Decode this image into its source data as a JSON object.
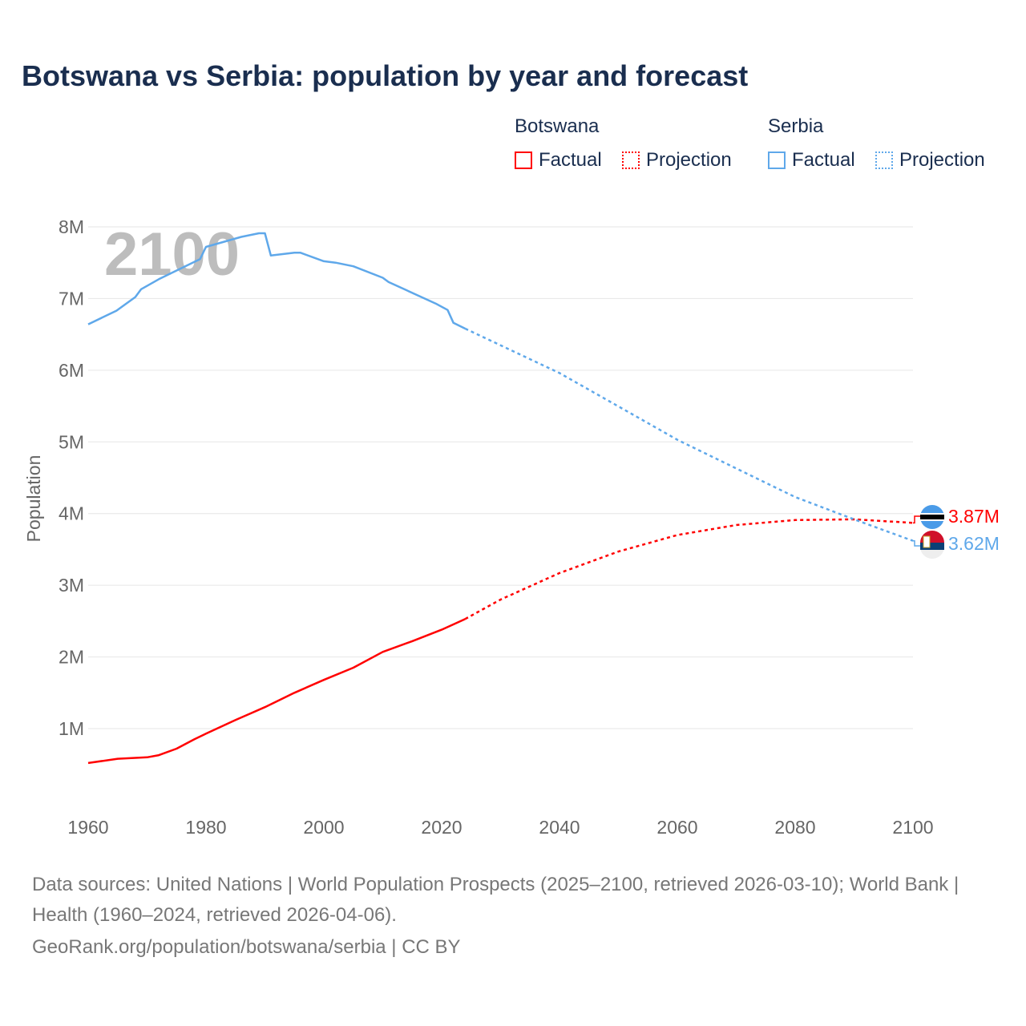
{
  "title": "Botswana vs Serbia: population by year and forecast",
  "legend": {
    "groups": [
      {
        "name": "Botswana",
        "factual": "Factual",
        "projection": "Projection",
        "color": "#ff0000"
      },
      {
        "name": "Serbia",
        "factual": "Factual",
        "projection": "Projection",
        "color": "#5fa8ea"
      }
    ]
  },
  "chart_data": {
    "type": "line",
    "title": "Botswana vs Serbia: population by year and forecast",
    "ylabel": "Population",
    "xlabel": "",
    "year_watermark": "2100",
    "xlim": [
      1960,
      2100
    ],
    "ylim": [
      0,
      8.2
    ],
    "x_ticks": [
      "1960",
      "1980",
      "2000",
      "2020",
      "2040",
      "2060",
      "2080",
      "2100"
    ],
    "y_ticks": [
      {
        "v": 1,
        "label": "1M"
      },
      {
        "v": 2,
        "label": "2M"
      },
      {
        "v": 3,
        "label": "3M"
      },
      {
        "v": 4,
        "label": "4M"
      },
      {
        "v": 5,
        "label": "5M"
      },
      {
        "v": 6,
        "label": "6M"
      },
      {
        "v": 7,
        "label": "7M"
      },
      {
        "v": 8,
        "label": "8M"
      }
    ],
    "units": "millions",
    "series": [
      {
        "name": "Botswana",
        "color": "#ff0000",
        "end_label": "3.87M",
        "factual": [
          [
            1960,
            0.52
          ],
          [
            1965,
            0.58
          ],
          [
            1970,
            0.6
          ],
          [
            1972,
            0.63
          ],
          [
            1975,
            0.72
          ],
          [
            1978,
            0.85
          ],
          [
            1980,
            0.93
          ],
          [
            1985,
            1.12
          ],
          [
            1990,
            1.3
          ],
          [
            1995,
            1.5
          ],
          [
            2000,
            1.68
          ],
          [
            2005,
            1.85
          ],
          [
            2010,
            2.07
          ],
          [
            2015,
            2.22
          ],
          [
            2020,
            2.38
          ],
          [
            2024,
            2.53
          ]
        ],
        "projection": [
          [
            2024,
            2.53
          ],
          [
            2030,
            2.8
          ],
          [
            2040,
            3.17
          ],
          [
            2050,
            3.47
          ],
          [
            2060,
            3.7
          ],
          [
            2070,
            3.84
          ],
          [
            2080,
            3.91
          ],
          [
            2090,
            3.92
          ],
          [
            2100,
            3.87
          ]
        ]
      },
      {
        "name": "Serbia",
        "color": "#5fa8ea",
        "end_label": "3.62M",
        "factual": [
          [
            1960,
            6.64
          ],
          [
            1964.8,
            6.83
          ],
          [
            1968,
            7.02
          ],
          [
            1969,
            7.13
          ],
          [
            1972,
            7.27
          ],
          [
            1979,
            7.55
          ],
          [
            1980,
            7.72
          ],
          [
            1986,
            7.86
          ],
          [
            1989,
            7.91
          ],
          [
            1990,
            7.91
          ],
          [
            1991,
            7.6
          ],
          [
            1995,
            7.64
          ],
          [
            1996,
            7.64
          ],
          [
            2000,
            7.52
          ],
          [
            2002,
            7.5
          ],
          [
            2005,
            7.45
          ],
          [
            2010,
            7.29
          ],
          [
            2011,
            7.23
          ],
          [
            2019,
            6.93
          ],
          [
            2021,
            6.84
          ],
          [
            2022,
            6.66
          ],
          [
            2024,
            6.58
          ]
        ],
        "projection": [
          [
            2024,
            6.58
          ],
          [
            2040,
            5.96
          ],
          [
            2060,
            5.03
          ],
          [
            2080,
            4.23
          ],
          [
            2090,
            3.92
          ],
          [
            2100,
            3.62
          ]
        ]
      }
    ]
  },
  "footer": {
    "sources": "Data sources: United Nations | World Population Prospects (2025–2100, retrieved 2026-03-10); World Bank | Health (1960–2024, retrieved 2026-04-06).",
    "link": "GeoRank.org/population/botswana/serbia | CC BY"
  }
}
